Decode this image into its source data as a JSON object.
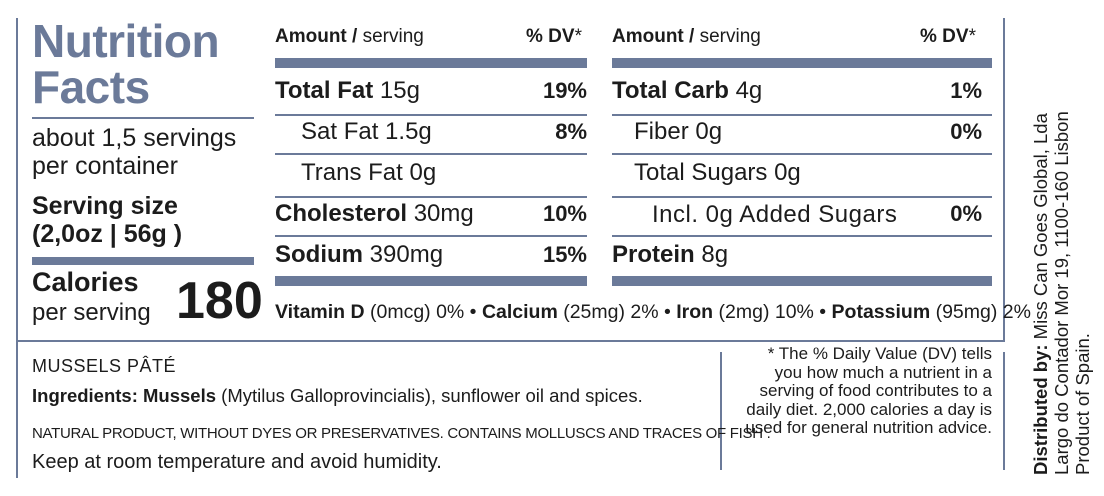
{
  "title_line1": "Nutrition",
  "title_line2": "Facts",
  "servings_line1": "about 1,5 servings",
  "servings_line2": "per container",
  "serving_size_label": "Serving size",
  "serving_size_value": "(2,0oz | 56g )",
  "calories_label": "Calories",
  "calories_per": "per serving",
  "calories_value": "180",
  "left_table": {
    "header_amount": "Amount /",
    "header_serving": "serving",
    "header_dv": "% DV",
    "header_star": "*",
    "rows": [
      {
        "name": "Total Fat",
        "amount": "15g",
        "dv": "19%"
      },
      {
        "name": "Sat Fat",
        "amount": "1.5g",
        "dv": "8%"
      },
      {
        "name": "Trans Fat",
        "amount": "0g",
        "dv": ""
      },
      {
        "name": "Cholesterol",
        "amount": "30mg",
        "dv": "10%"
      },
      {
        "name": "Sodium",
        "amount": "390mg",
        "dv": "15%"
      }
    ]
  },
  "right_table": {
    "header_amount": "Amount /",
    "header_serving": "serving",
    "header_dv": "% DV",
    "header_star": "*",
    "rows": [
      {
        "name": "Total Carb",
        "amount": "4g",
        "dv": "1%"
      },
      {
        "name": "Fiber",
        "amount": "0g",
        "dv": "0%"
      },
      {
        "name": "Total Sugars",
        "amount": "0g",
        "dv": ""
      },
      {
        "name": "Incl. 0g Added Sugars",
        "amount": "",
        "dv": "0%"
      },
      {
        "name": "Protein",
        "amount": "8g",
        "dv": ""
      }
    ]
  },
  "vitamins": {
    "vitd_name": "Vitamin D",
    "vitd_rest": " (0mcg)  0% • ",
    "calcium_name": "Calcium",
    "calcium_rest": " (25mg) 2% • ",
    "iron_name": "Iron",
    "iron_rest": " (2mg) 10% • ",
    "potassium_name": "Potassium",
    "potassium_rest": " (95mg) 2%"
  },
  "product_name": "MUSSELS PÂTÉ",
  "ingredients_label": "Ingredients: ",
  "ingredients_main": "Mussels",
  "ingredients_rest": " (Mytilus Galloprovincialis), sunflower oil and spices.",
  "natural_note": "NATURAL PRODUCT, WITHOUT DYES OR PRESERVATIVES.  CONTAINS MOLLUSCS AND TRACES OF FISH .",
  "storage": "Keep at room temperature and avoid humidity.",
  "dv_footnote": "* The % Daily Value (DV) tells you how much a nutrient in a serving of food contributes to a daily diet. 2,000 calories a day is used for general nutrition advice.",
  "distributor_label": "Distributed by:",
  "distributor_line1": " Miss Can Goes Global, Lda",
  "distributor_line2": "Largo do Contador Mor 19, 1100-160 Lisbon",
  "distributor_line3": "Product of Spain.",
  "colors": {
    "accent": "#6b7a99",
    "text": "#1c1c1c"
  }
}
